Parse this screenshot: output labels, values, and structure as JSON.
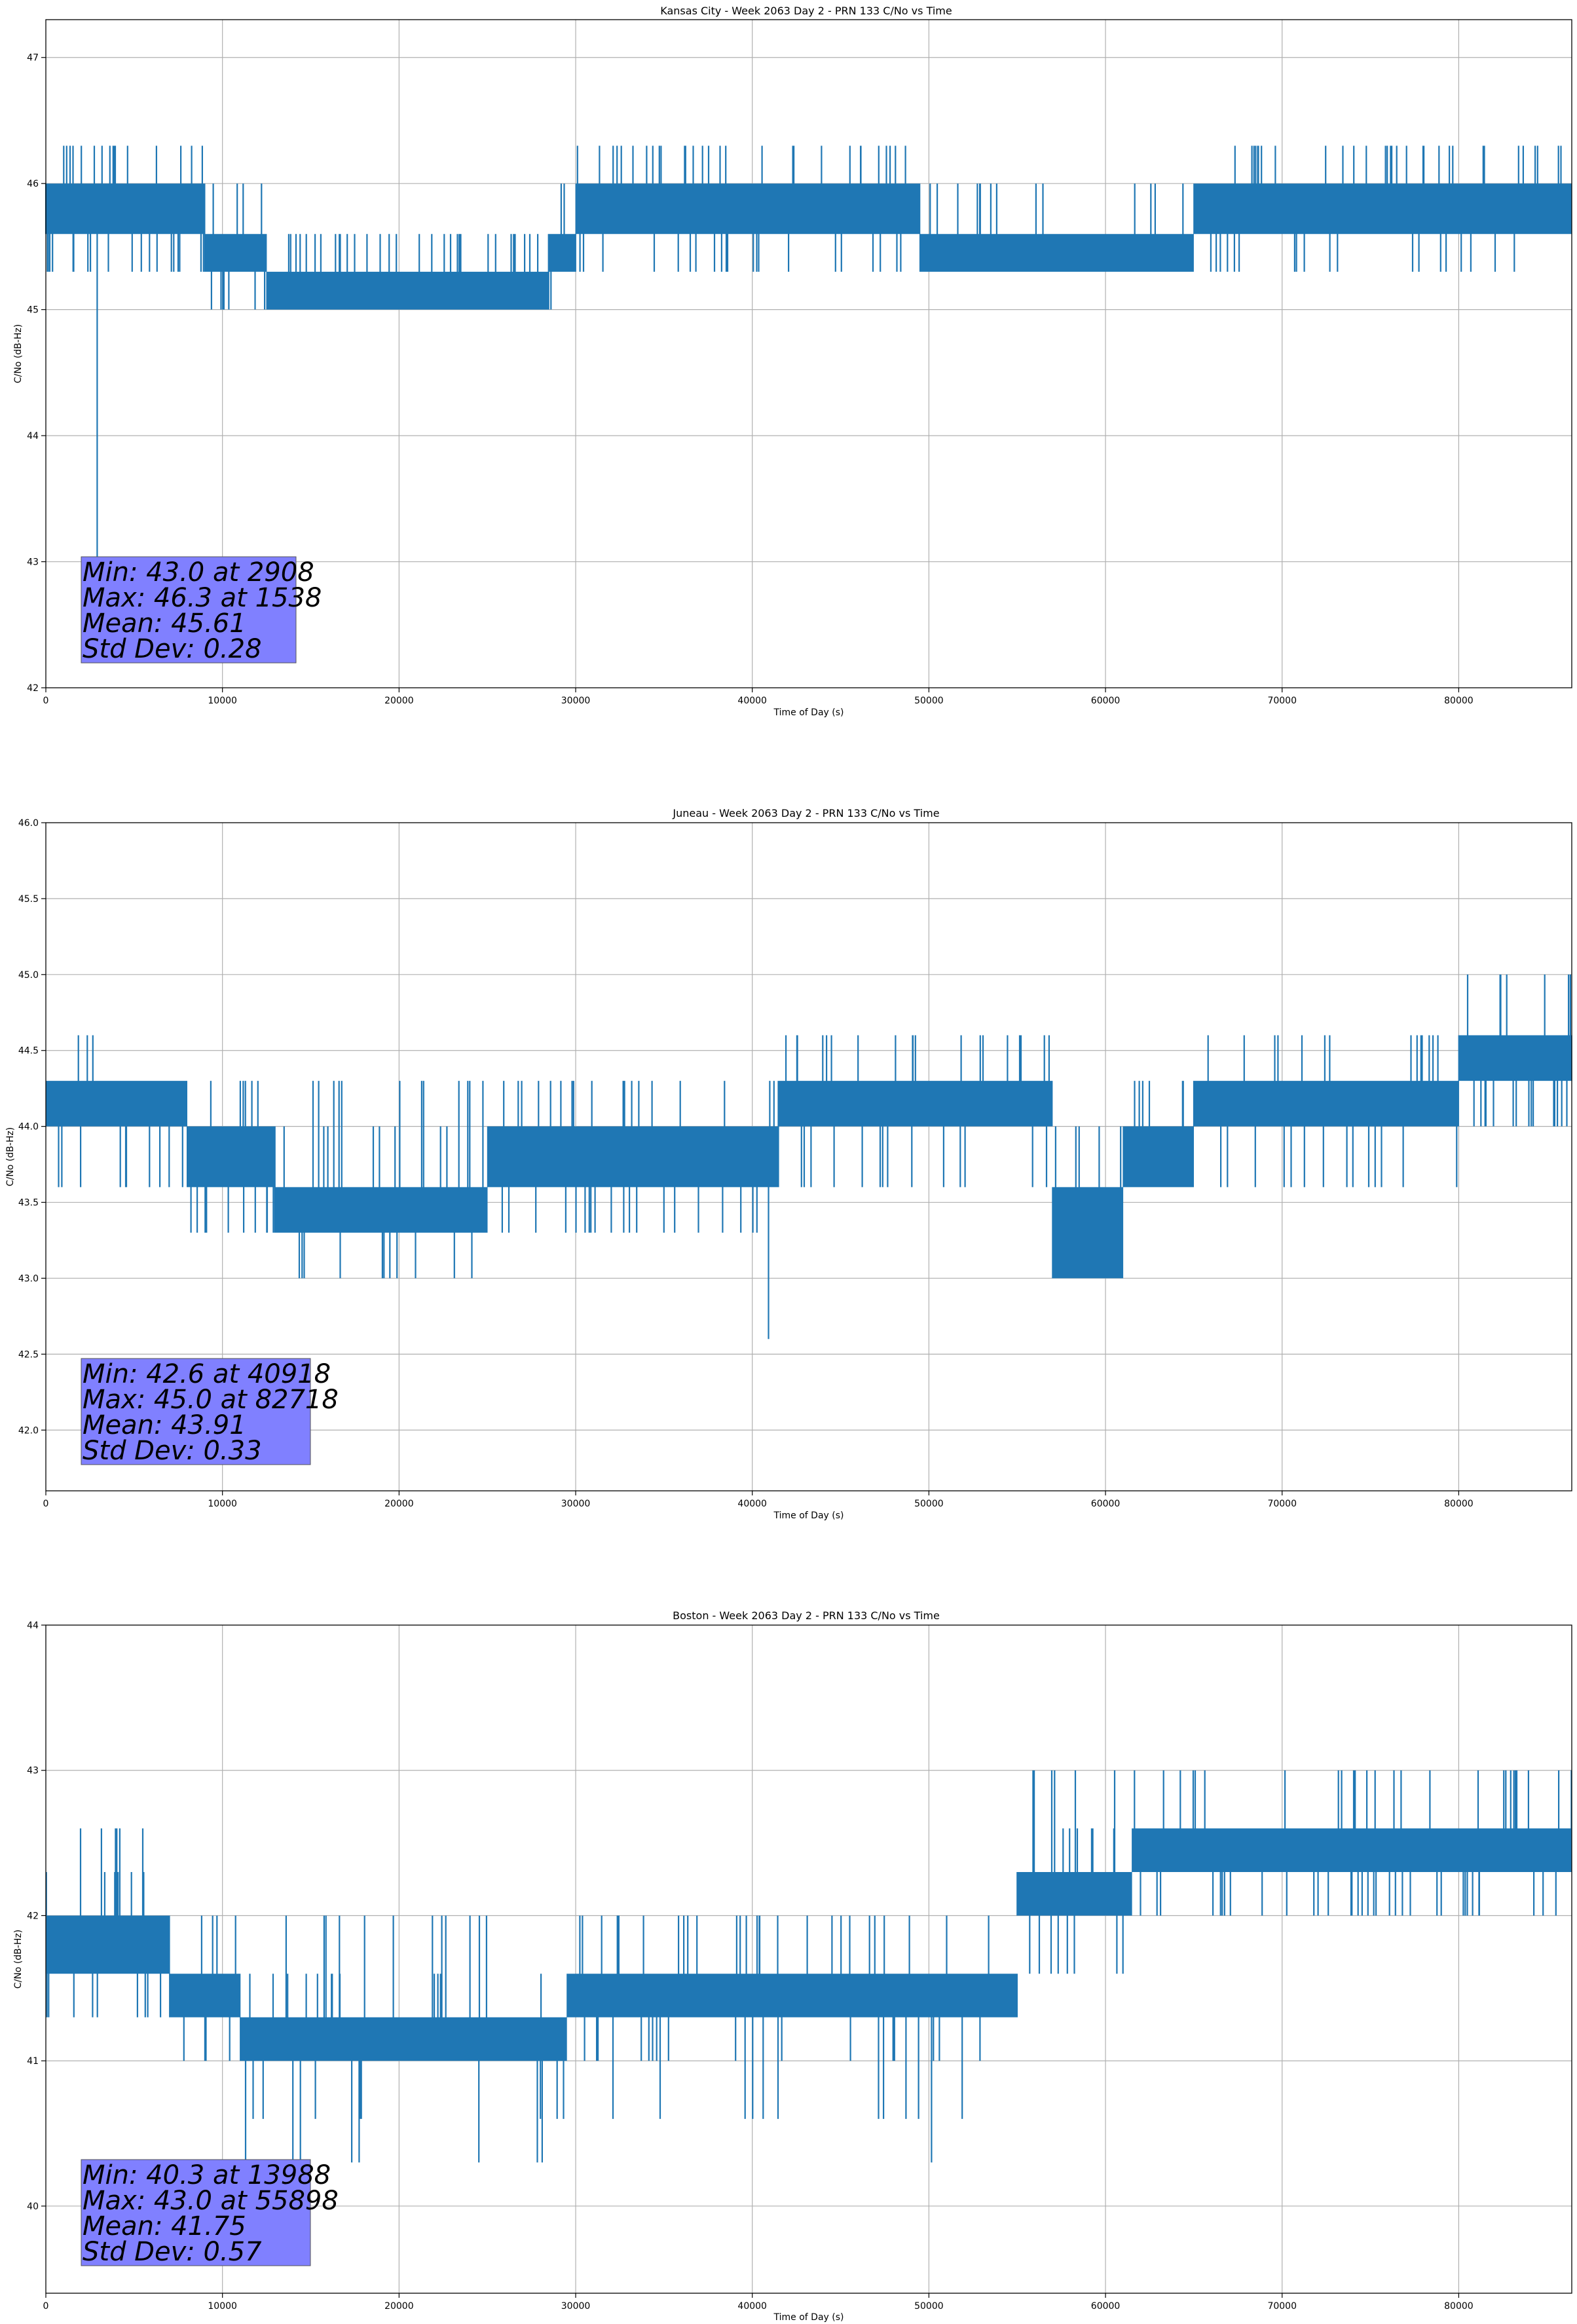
{
  "figure": {
    "style": {
      "line_color": "#1f77b4",
      "grid_color": "#b0b0b0",
      "stats_box_color": "#8080ff",
      "background": "#ffffff"
    }
  },
  "chart_data": [
    {
      "type": "line",
      "title": "Kansas City - Week 2063 Day 2 - PRN 133 C/No vs Time",
      "xlabel": "Time of Day (s)",
      "ylabel": "C/No (dB-Hz)",
      "xlim": [
        0,
        86400
      ],
      "ylim": [
        42,
        47.3
      ],
      "xticks": [
        0,
        10000,
        20000,
        30000,
        40000,
        50000,
        60000,
        70000,
        80000
      ],
      "yticks": [
        42,
        43,
        44,
        45,
        46,
        47
      ],
      "ytick_labels": [
        "42",
        "43",
        "44",
        "45",
        "46",
        "47"
      ],
      "grid": true,
      "segments": [
        {
          "x0": 0,
          "x1": 9000,
          "lo": 45.6,
          "hi": 46.0,
          "dips": [
            45.3
          ],
          "spikes": [
            46.3
          ]
        },
        {
          "x0": 9000,
          "x1": 12500,
          "lo": 45.3,
          "hi": 45.6,
          "dips": [
            45.0
          ],
          "spikes": [
            46.0
          ]
        },
        {
          "x0": 12500,
          "x1": 28500,
          "lo": 45.0,
          "hi": 45.3,
          "dips": [],
          "spikes": [
            45.6
          ]
        },
        {
          "x0": 28500,
          "x1": 30000,
          "lo": 45.3,
          "hi": 45.6,
          "dips": [
            45.0
          ],
          "spikes": [
            46.0
          ]
        },
        {
          "x0": 30000,
          "x1": 49500,
          "lo": 45.6,
          "hi": 46.0,
          "dips": [
            45.3
          ],
          "spikes": [
            46.3
          ]
        },
        {
          "x0": 49500,
          "x1": 65000,
          "lo": 45.3,
          "hi": 45.6,
          "dips": [],
          "spikes": [
            46.0
          ]
        },
        {
          "x0": 65000,
          "x1": 86400,
          "lo": 45.6,
          "hi": 46.0,
          "dips": [
            45.3
          ],
          "spikes": [
            46.3
          ]
        }
      ],
      "events": [
        {
          "x": 1538,
          "y": 46.3
        },
        {
          "x": 2908,
          "y": 43.0
        }
      ],
      "stats": {
        "min": "Min: 43.0 at 2908",
        "max": "Max: 46.3 at 1538",
        "mean": "Mean: 45.61",
        "std": "Std Dev: 0.28"
      }
    },
    {
      "type": "line",
      "title": "Juneau - Week 2063 Day 2 - PRN 133 C/No vs Time",
      "xlabel": "Time of Day (s)",
      "ylabel": "C/No (dB-Hz)",
      "xlim": [
        0,
        86400
      ],
      "ylim": [
        41.6,
        46.0
      ],
      "xticks": [
        0,
        10000,
        20000,
        30000,
        40000,
        50000,
        60000,
        70000,
        80000
      ],
      "yticks": [
        42.0,
        42.5,
        43.0,
        43.5,
        44.0,
        44.5,
        45.0,
        45.5,
        46.0
      ],
      "ytick_labels": [
        "42.0",
        "42.5",
        "43.0",
        "43.5",
        "44.0",
        "44.5",
        "45.0",
        "45.5",
        "46.0"
      ],
      "grid": true,
      "segments": [
        {
          "x0": 0,
          "x1": 8000,
          "lo": 44.0,
          "hi": 44.3,
          "dips": [
            43.6
          ],
          "spikes": [
            44.6
          ]
        },
        {
          "x0": 8000,
          "x1": 13000,
          "lo": 43.6,
          "hi": 44.0,
          "dips": [
            43.3
          ],
          "spikes": [
            44.3
          ]
        },
        {
          "x0": 13000,
          "x1": 25000,
          "lo": 43.3,
          "hi": 43.6,
          "dips": [
            43.0
          ],
          "spikes": [
            44.0,
            44.3
          ]
        },
        {
          "x0": 25000,
          "x1": 41500,
          "lo": 43.6,
          "hi": 44.0,
          "dips": [
            43.3
          ],
          "spikes": [
            44.3
          ]
        },
        {
          "x0": 41500,
          "x1": 57000,
          "lo": 44.0,
          "hi": 44.3,
          "dips": [
            43.6
          ],
          "spikes": [
            44.6
          ]
        },
        {
          "x0": 57000,
          "x1": 61000,
          "lo": 43.0,
          "hi": 43.6,
          "dips": [
            43.0
          ],
          "spikes": [
            44.0
          ]
        },
        {
          "x0": 61000,
          "x1": 65000,
          "lo": 43.6,
          "hi": 44.0,
          "dips": [],
          "spikes": [
            44.3
          ]
        },
        {
          "x0": 65000,
          "x1": 80000,
          "lo": 44.0,
          "hi": 44.3,
          "dips": [
            43.6
          ],
          "spikes": [
            44.6
          ]
        },
        {
          "x0": 80000,
          "x1": 86400,
          "lo": 44.3,
          "hi": 44.6,
          "dips": [
            44.0
          ],
          "spikes": [
            45.0
          ]
        }
      ],
      "events": [
        {
          "x": 40918,
          "y": 42.6
        },
        {
          "x": 82718,
          "y": 45.0
        }
      ],
      "stats": {
        "min": "Min: 42.6 at 40918",
        "max": "Max: 45.0 at 82718",
        "mean": "Mean: 43.91",
        "std": "Std Dev: 0.33"
      }
    },
    {
      "type": "line",
      "title": "Boston - Week 2063 Day 2 - PRN 133 C/No vs Time",
      "xlabel": "Time of Day (s)",
      "ylabel": "C/No (dB-Hz)",
      "xlim": [
        0,
        86400
      ],
      "ylim": [
        39.4,
        44.0
      ],
      "xticks": [
        0,
        10000,
        20000,
        30000,
        40000,
        50000,
        60000,
        70000,
        80000
      ],
      "yticks": [
        40,
        41,
        42,
        43,
        44
      ],
      "ytick_labels": [
        "40",
        "41",
        "42",
        "43",
        "44"
      ],
      "grid": true,
      "segments": [
        {
          "x0": 0,
          "x1": 7000,
          "lo": 41.6,
          "hi": 42.0,
          "dips": [
            41.3
          ],
          "spikes": [
            42.3,
            42.6
          ]
        },
        {
          "x0": 7000,
          "x1": 11000,
          "lo": 41.3,
          "hi": 41.6,
          "dips": [
            41.0
          ],
          "spikes": [
            42.0
          ]
        },
        {
          "x0": 11000,
          "x1": 29500,
          "lo": 41.0,
          "hi": 41.3,
          "dips": [
            40.6,
            40.3
          ],
          "spikes": [
            41.6,
            42.0
          ]
        },
        {
          "x0": 29500,
          "x1": 55000,
          "lo": 41.3,
          "hi": 41.6,
          "dips": [
            41.0,
            40.6
          ],
          "spikes": [
            42.0
          ]
        },
        {
          "x0": 55000,
          "x1": 61500,
          "lo": 42.0,
          "hi": 42.3,
          "dips": [
            41.6
          ],
          "spikes": [
            42.6,
            43.0
          ]
        },
        {
          "x0": 61500,
          "x1": 86400,
          "lo": 42.3,
          "hi": 42.6,
          "dips": [
            42.0
          ],
          "spikes": [
            43.0
          ]
        }
      ],
      "events": [
        {
          "x": 13988,
          "y": 40.3
        },
        {
          "x": 55898,
          "y": 43.0
        },
        {
          "x": 50150,
          "y": 40.3
        }
      ],
      "stats": {
        "min": "Min: 40.3 at 13988",
        "max": "Max: 43.0 at 55898",
        "mean": "Mean: 41.75",
        "std": "Std Dev: 0.57"
      }
    }
  ]
}
